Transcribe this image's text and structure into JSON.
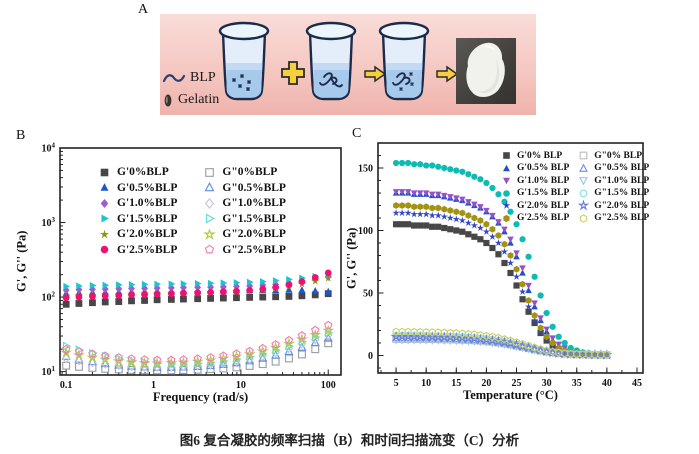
{
  "panel_a": {
    "label": "A",
    "blp_label": "BLP",
    "gelatin_label": "Gelatin",
    "colors": {
      "background_top": "#f9dcd8",
      "background_bottom": "#efb3ac",
      "beaker_outline": "#1c2b49",
      "beaker_glass": "#e3eefa",
      "liquid": "#a6c9ec",
      "arrow_yellow": "#f6cf3f",
      "photo_background": "#413e3b",
      "gel_white": "#f1f2ec"
    }
  },
  "panel_b": {
    "label": "B"
  },
  "panel_c": {
    "label": "C"
  },
  "caption": "图6 复合凝胶的频率扫描（B）和时间扫描流变（C）分析",
  "chart_data": [
    {
      "panel": "B",
      "type": "scatter",
      "title": "",
      "xlabel": "Frequency (rad/s)",
      "ylabel": "G', G'' (Pa)",
      "xscale": "log",
      "yscale": "log",
      "xlim": [
        0.085,
        140
      ],
      "ylim": [
        9,
        10000
      ],
      "grid": false,
      "legend_position": "inside-top-left",
      "marker_r": 3.4,
      "xticks": [
        {
          "v": 0.1,
          "label": "0.1"
        },
        {
          "v": 1,
          "label": "1"
        },
        {
          "v": 10,
          "label": "10"
        },
        {
          "v": 100,
          "label": "100"
        }
      ],
      "yticks": [
        {
          "v": 10,
          "label": "10^1"
        },
        {
          "v": 100,
          "label": "10^2"
        },
        {
          "v": 1000,
          "label": "10^3"
        },
        {
          "v": 10000,
          "label": "10^4"
        }
      ],
      "x": [
        0.1,
        0.14,
        0.2,
        0.28,
        0.4,
        0.56,
        0.79,
        1.1,
        1.6,
        2.2,
        3.2,
        4.5,
        6.3,
        8.9,
        12.6,
        17.8,
        25,
        35.5,
        50,
        71,
        100
      ],
      "series": [
        {
          "name": "G'0%BLP",
          "marker": "square",
          "color": "#474747",
          "filled": true,
          "values": [
            80,
            82,
            84,
            86,
            87,
            89,
            90,
            92,
            93,
            94,
            95,
            96,
            97,
            98,
            99,
            100,
            101,
            102,
            104,
            107,
            111
          ]
        },
        {
          "name": "G'0.5%BLP",
          "marker": "triangle-up",
          "color": "#1f55cd",
          "filled": true,
          "values": [
            112,
            114,
            115,
            116,
            117,
            118,
            119,
            120,
            120,
            121,
            121,
            122,
            122,
            123,
            123,
            124,
            124,
            125,
            124,
            121,
            118
          ]
        },
        {
          "name": "G'1.0%BLP",
          "marker": "diamond",
          "color": "#a05ad5",
          "filled": true,
          "values": [
            124,
            126,
            127,
            128,
            129,
            130,
            131,
            132,
            133,
            134,
            135,
            136,
            137,
            139,
            141,
            144,
            148,
            154,
            162,
            173,
            187
          ]
        },
        {
          "name": "G'1.5%BLP",
          "marker": "triangle-right",
          "color": "#1ec3cd",
          "filled": true,
          "values": [
            139,
            141,
            143,
            144,
            146,
            147,
            148,
            149,
            150,
            151,
            152,
            153,
            155,
            156,
            158,
            161,
            166,
            172,
            180,
            189,
            197
          ]
        },
        {
          "name": "G'2.0%BLP",
          "marker": "star",
          "color": "#8e9303",
          "filled": true,
          "values": [
            103,
            105,
            106,
            108,
            109,
            110,
            111,
            112,
            113,
            114,
            115,
            116,
            117,
            119,
            121,
            124,
            129,
            137,
            149,
            163,
            179
          ]
        },
        {
          "name": "G'2.5%BLP",
          "marker": "circle",
          "color": "#ed1272",
          "filled": true,
          "values": [
            98,
            100,
            102,
            104,
            105,
            107,
            108,
            110,
            111,
            113,
            114,
            116,
            118,
            120,
            123,
            128,
            135,
            146,
            161,
            183,
            211
          ]
        },
        {
          "name": "G\"0%BLP",
          "marker": "square",
          "color": "#9aa0a6",
          "filled": false,
          "values": [
            12,
            11.6,
            11.2,
            10.9,
            10.7,
            10.5,
            10.4,
            10.4,
            10.4,
            10.5,
            10.6,
            10.8,
            11,
            11.4,
            11.9,
            12.6,
            13.6,
            15,
            17,
            20,
            24
          ]
        },
        {
          "name": "G\"0.5%BLP",
          "marker": "triangle-up",
          "color": "#5f8fe0",
          "filled": false,
          "values": [
            16,
            14.6,
            13.6,
            12.8,
            12.2,
            11.8,
            11.5,
            11.4,
            11.4,
            11.5,
            11.7,
            12,
            12.5,
            13.1,
            13.9,
            15.1,
            16.6,
            18.6,
            21.2,
            24.5,
            28
          ]
        },
        {
          "name": "G\"1.0%BLP",
          "marker": "diamond",
          "color": "#c3c5dd",
          "filled": false,
          "values": [
            15,
            14.1,
            13.3,
            12.7,
            12.2,
            11.8,
            11.6,
            11.5,
            11.6,
            11.8,
            12.1,
            12.5,
            13.1,
            13.8,
            14.7,
            16.1,
            18,
            20.5,
            23.5,
            27,
            31
          ]
        },
        {
          "name": "G\"1.5%BLP",
          "marker": "triangle-right",
          "color": "#66dcd8",
          "filled": false,
          "values": [
            22,
            19.6,
            17.6,
            16.1,
            14.9,
            14,
            13.3,
            12.9,
            12.7,
            12.7,
            12.9,
            13.3,
            13.9,
            14.7,
            15.8,
            17.3,
            19.3,
            22,
            25.2,
            29,
            33.2
          ]
        },
        {
          "name": "G\"2.0%BLP",
          "marker": "star",
          "color": "#b3cc45",
          "filled": false,
          "values": [
            18,
            16.6,
            15.4,
            14.5,
            13.8,
            13.3,
            13,
            12.9,
            13,
            13.2,
            13.6,
            14.1,
            14.9,
            15.9,
            17.1,
            18.7,
            20.9,
            23.7,
            27.1,
            31,
            35.4
          ]
        },
        {
          "name": "G\"2.5%BLP",
          "marker": "pentagon",
          "color": "#f27fb1",
          "filled": false,
          "values": [
            20,
            18.6,
            17.3,
            16.3,
            15.5,
            14.9,
            14.5,
            14.3,
            14.3,
            14.5,
            14.9,
            15.5,
            16.3,
            17.4,
            18.8,
            20.6,
            23.1,
            26.3,
            30.5,
            36,
            42
          ]
        }
      ]
    },
    {
      "panel": "C",
      "type": "scatter",
      "title": "",
      "xlabel": "Temperature (°C)",
      "ylabel": "G', G'' (Pa)",
      "xscale": "linear",
      "yscale": "linear",
      "xlim": [
        2,
        46
      ],
      "ylim": [
        -14,
        170
      ],
      "x_minor": 2.5,
      "y_minor": 10,
      "grid": false,
      "legend_position": "inside-top-right",
      "marker_r": 3.1,
      "xticks": [
        {
          "v": 5,
          "label": "5"
        },
        {
          "v": 10,
          "label": "10"
        },
        {
          "v": 15,
          "label": "15"
        },
        {
          "v": 20,
          "label": "20"
        },
        {
          "v": 25,
          "label": "25"
        },
        {
          "v": 30,
          "label": "30"
        },
        {
          "v": 35,
          "label": "35"
        },
        {
          "v": 40,
          "label": "40"
        },
        {
          "v": 45,
          "label": "45"
        }
      ],
      "yticks": [
        {
          "v": 0,
          "label": "0"
        },
        {
          "v": 50,
          "label": "50"
        },
        {
          "v": 100,
          "label": "100"
        },
        {
          "v": 150,
          "label": "150"
        }
      ],
      "x": [
        5,
        6,
        7,
        8,
        9,
        10,
        11,
        12,
        13,
        14,
        15,
        16,
        17,
        18,
        19,
        20,
        21,
        22,
        23,
        24,
        25,
        26,
        27,
        28,
        29,
        30,
        31,
        32,
        33,
        34,
        35,
        36,
        37,
        38,
        39,
        40
      ],
      "series": [
        {
          "name": "G'0% BLP",
          "marker": "square",
          "color": "#474747",
          "filled": true,
          "values": [
            105,
            105,
            105,
            104,
            104,
            104,
            103,
            103,
            102,
            101,
            100,
            99,
            97,
            95,
            93,
            90,
            86,
            81,
            74,
            66,
            56,
            45,
            35,
            26,
            18,
            12,
            8,
            5,
            3,
            2,
            1.5,
            1.2,
            1,
            0.9,
            0.8,
            0.7
          ]
        },
        {
          "name": "G'0.5% BLP",
          "marker": "triangle-up",
          "color": "#2150c8",
          "filled": true,
          "values": [
            130,
            130,
            130,
            129,
            129,
            129,
            128,
            128,
            127,
            126,
            125,
            124,
            122,
            120,
            118,
            115,
            111,
            106,
            99,
            90,
            79,
            66,
            52,
            39,
            28,
            19,
            12,
            8,
            5,
            3,
            2,
            1.5,
            1.2,
            1,
            0.9,
            0.8
          ]
        },
        {
          "name": "G'1.0% BLP",
          "marker": "triangle-down",
          "color": "#9550cc",
          "filled": true,
          "values": [
            131,
            131,
            131,
            130,
            130,
            130,
            129,
            129,
            128,
            127,
            126,
            125,
            123,
            121,
            119,
            116,
            112,
            107,
            101,
            93,
            82,
            70,
            56,
            42,
            30,
            21,
            14,
            9,
            6,
            4,
            2.5,
            1.8,
            1.4,
            1.1,
            0.9,
            0.8
          ]
        },
        {
          "name": "G'1.5% BLP",
          "marker": "circle",
          "color": "#0cbcb4",
          "filled": true,
          "values": [
            154,
            154,
            154,
            153,
            153,
            152,
            152,
            151,
            150,
            149,
            148,
            147,
            145,
            143,
            141,
            138,
            134,
            129,
            123,
            115,
            105,
            93,
            79,
            63,
            48,
            34,
            23,
            15,
            10,
            6,
            4,
            2.5,
            1.8,
            1.4,
            1.1,
            0.9
          ]
        },
        {
          "name": "G'2.0% BLP",
          "marker": "star",
          "color": "#2f45cc",
          "filled": true,
          "values": [
            114,
            114,
            114,
            113,
            113,
            113,
            112,
            112,
            111,
            110,
            109,
            108,
            106,
            104,
            102,
            99,
            95,
            90,
            83,
            74,
            63,
            51,
            39,
            28,
            19,
            13,
            8,
            5,
            3,
            2,
            1.5,
            1.1,
            0.9,
            0.8,
            0.7,
            0.6
          ]
        },
        {
          "name": "G'2.5% BLP",
          "marker": "hexagon",
          "color": "#a39312",
          "filled": true,
          "values": [
            120,
            120,
            120,
            119,
            119,
            119,
            118,
            118,
            117,
            116,
            115,
            114,
            112,
            110,
            108,
            105,
            101,
            96,
            89,
            80,
            69,
            57,
            44,
            32,
            22,
            15,
            10,
            6,
            4,
            2.5,
            1.8,
            1.3,
            1,
            0.9,
            0.8,
            0.7
          ]
        },
        {
          "name": "G\"0% BLP",
          "marker": "square",
          "color": "#bfbfbf",
          "filled": false,
          "values": [
            13,
            13,
            13,
            13,
            13,
            12.9,
            12.9,
            12.8,
            12.7,
            12.6,
            12.5,
            12.3,
            12.1,
            11.9,
            11.6,
            11.2,
            10.7,
            10.1,
            9.4,
            8.6,
            7.7,
            6.7,
            5.7,
            4.7,
            3.8,
            3,
            2.3,
            1.8,
            1.4,
            1.1,
            0.9,
            0.8,
            0.7,
            0.6,
            0.5,
            0.5
          ]
        },
        {
          "name": "G\"0.5% BLP",
          "marker": "triangle-up",
          "color": "#6f95dc",
          "filled": false,
          "values": [
            14,
            14,
            14,
            13.9,
            13.9,
            13.8,
            13.7,
            13.6,
            13.5,
            13.4,
            13.2,
            13,
            12.8,
            12.5,
            12.2,
            11.8,
            11.3,
            10.7,
            9.9,
            9,
            8,
            7,
            6,
            5,
            4,
            3.2,
            2.5,
            1.9,
            1.5,
            1.2,
            1,
            0.8,
            0.7,
            0.6,
            0.6,
            0.5
          ]
        },
        {
          "name": "G\"1.0% BLP",
          "marker": "triangle-down",
          "color": "#9fc4ec",
          "filled": false,
          "values": [
            12.5,
            12.5,
            12.5,
            12.5,
            12.4,
            12.4,
            12.3,
            12.3,
            12.2,
            12.1,
            12,
            11.8,
            11.6,
            11.4,
            11.1,
            10.7,
            10.3,
            9.7,
            9,
            8.2,
            7.3,
            6.4,
            5.4,
            4.5,
            3.6,
            2.8,
            2.2,
            1.7,
            1.3,
            1,
            0.8,
            0.7,
            0.6,
            0.6,
            0.5,
            0.5
          ]
        },
        {
          "name": "G\"1.5% BLP",
          "marker": "circle",
          "color": "#8fdce0",
          "filled": false,
          "values": [
            16,
            16,
            16,
            15.9,
            15.9,
            15.8,
            15.7,
            15.6,
            15.5,
            15.3,
            15.1,
            14.9,
            14.6,
            14.3,
            13.9,
            13.4,
            12.8,
            12.1,
            11.2,
            10.2,
            9.1,
            7.9,
            6.7,
            5.5,
            4.4,
            3.4,
            2.6,
            2,
            1.5,
            1.2,
            1,
            0.8,
            0.7,
            0.6,
            0.6,
            0.5
          ]
        },
        {
          "name": "G\"2.0% BLP",
          "marker": "star",
          "color": "#6b7fd8",
          "filled": false,
          "values": [
            15,
            15,
            15,
            14.9,
            14.9,
            14.8,
            14.7,
            14.6,
            14.5,
            14.4,
            14.2,
            14,
            13.7,
            13.4,
            13,
            12.6,
            12,
            11.3,
            10.5,
            9.6,
            8.5,
            7.4,
            6.3,
            5.1,
            4.1,
            3.2,
            2.4,
            1.8,
            1.4,
            1.1,
            0.9,
            0.8,
            0.7,
            0.6,
            0.5,
            0.5
          ]
        },
        {
          "name": "G\"2.5% BLP",
          "marker": "hexagon",
          "color": "#c9d264",
          "filled": false,
          "values": [
            19,
            19,
            19,
            18.9,
            18.8,
            18.7,
            18.6,
            18.5,
            18.3,
            18.1,
            17.9,
            17.6,
            17.2,
            16.8,
            16.3,
            15.7,
            15,
            14.1,
            13.1,
            11.9,
            10.6,
            9.2,
            7.8,
            6.4,
            5.1,
            3.9,
            3,
            2.3,
            1.7,
            1.3,
            1.1,
            0.9,
            0.8,
            0.7,
            0.6,
            0.6
          ]
        }
      ]
    }
  ]
}
